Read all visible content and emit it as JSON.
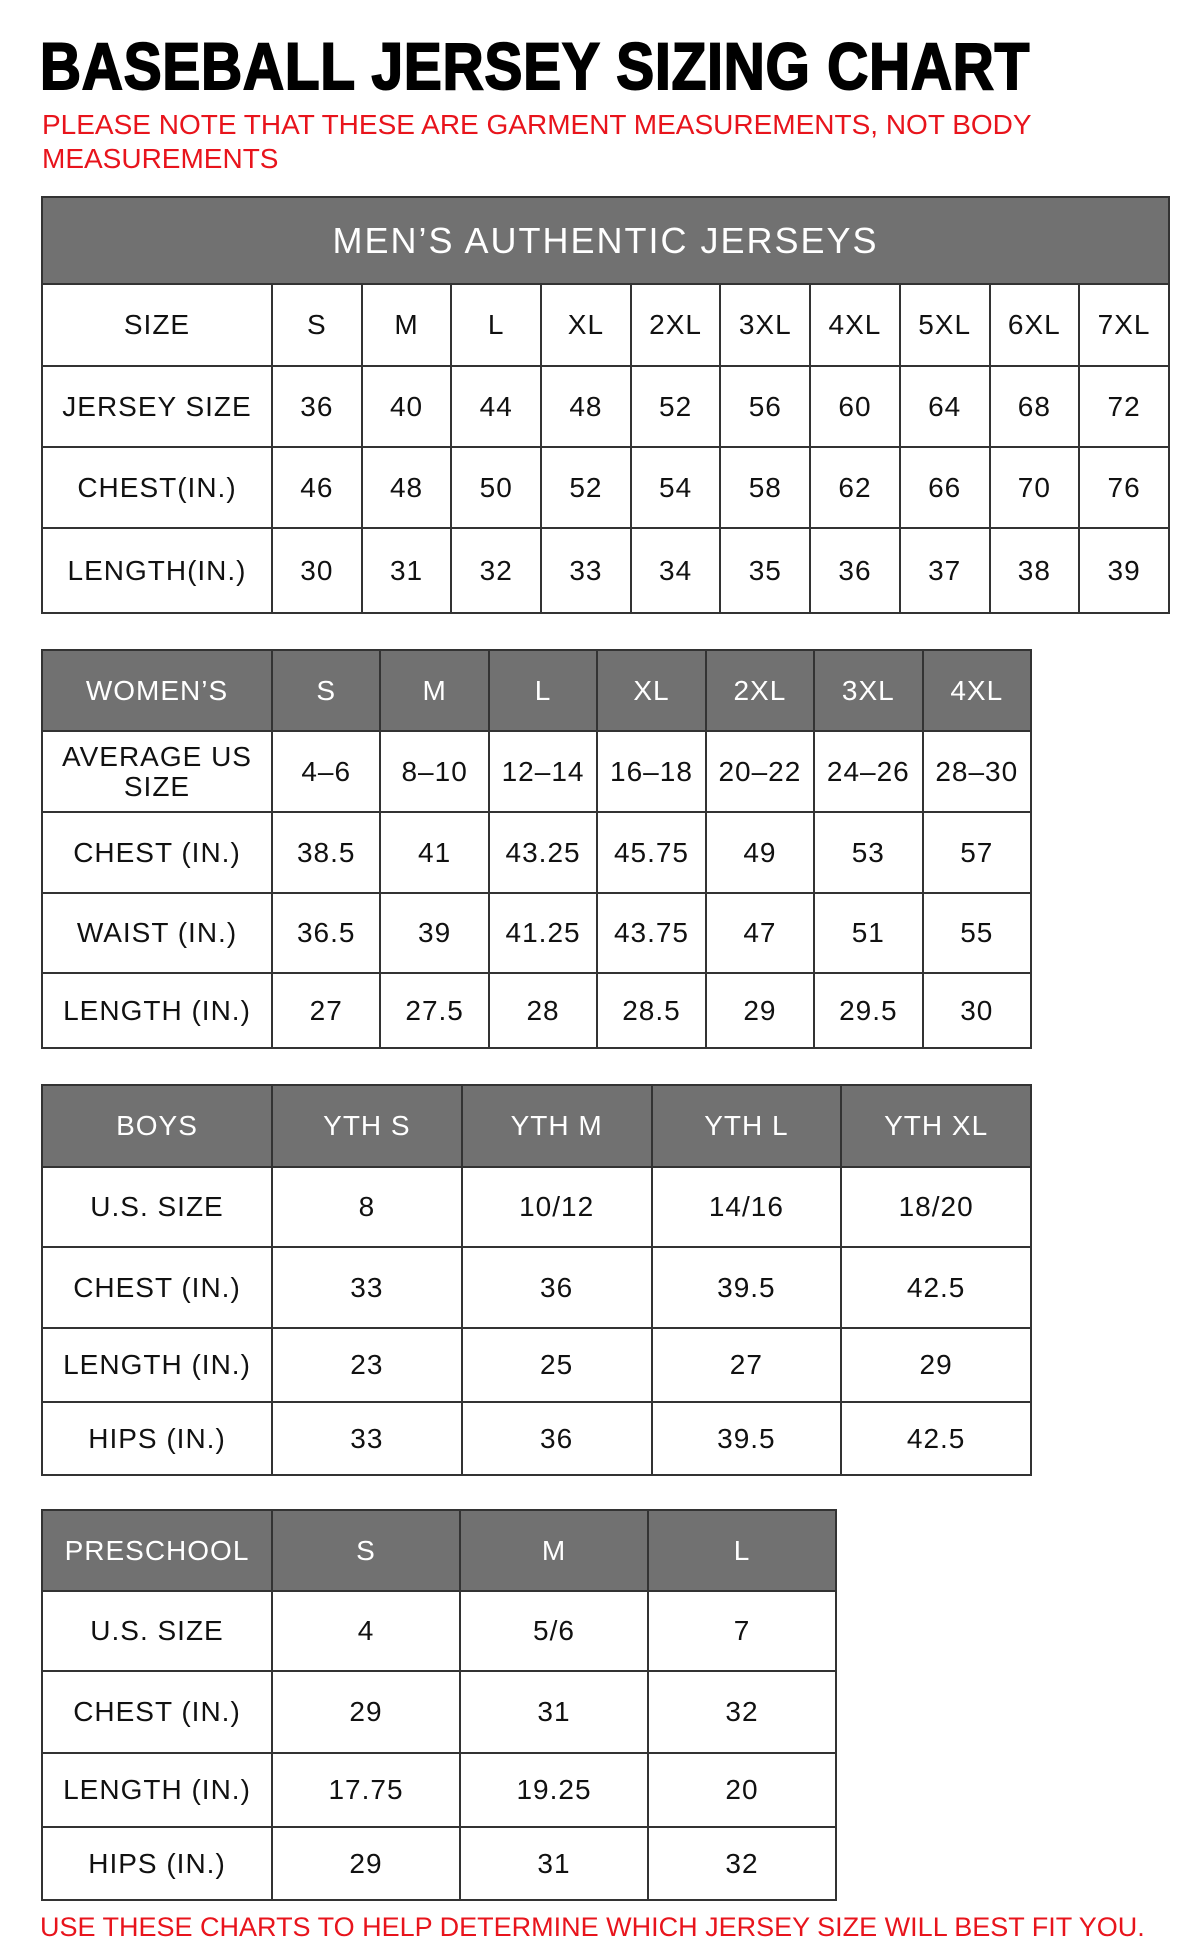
{
  "title": "BASEBALL JERSEY SIZING CHART",
  "note": "PLEASE NOTE THAT THESE ARE GARMENT MEASUREMENTS, NOT BODY MEASUREMENTS",
  "footer": "USE THESE CHARTS TO HELP DETERMINE WHICH JERSEY SIZE WILL BEST FIT YOU.",
  "colors": {
    "header_gray": "#717171",
    "note_red": "#e8141c"
  },
  "mens": {
    "title": "MEN’S AUTHENTIC JERSEYS",
    "rows": [
      [
        "SIZE",
        "S",
        "M",
        "L",
        "XL",
        "2XL",
        "3XL",
        "4XL",
        "5XL",
        "6XL",
        "7XL"
      ],
      [
        "JERSEY SIZE",
        "36",
        "40",
        "44",
        "48",
        "52",
        "56",
        "60",
        "64",
        "68",
        "72"
      ],
      [
        "CHEST(IN.)",
        "46",
        "48",
        "50",
        "52",
        "54",
        "58",
        "62",
        "66",
        "70",
        "76"
      ],
      [
        "LENGTH(IN.)",
        "30",
        "31",
        "32",
        "33",
        "34",
        "35",
        "36",
        "37",
        "38",
        "39"
      ]
    ]
  },
  "womens": {
    "header": [
      "WOMEN’S",
      "S",
      "M",
      "L",
      "XL",
      "2XL",
      "3XL",
      "4XL"
    ],
    "rows": [
      [
        "AVERAGE US SIZE",
        "4–6",
        "8–10",
        "12–14",
        "16–18",
        "20–22",
        "24–26",
        "28–30"
      ],
      [
        "CHEST (IN.)",
        "38.5",
        "41",
        "43.25",
        "45.75",
        "49",
        "53",
        "57"
      ],
      [
        "WAIST (IN.)",
        "36.5",
        "39",
        "41.25",
        "43.75",
        "47",
        "51",
        "55"
      ],
      [
        "LENGTH (IN.)",
        "27",
        "27.5",
        "28",
        "28.5",
        "29",
        "29.5",
        "30"
      ]
    ]
  },
  "boys": {
    "header": [
      "BOYS",
      "YTH S",
      "YTH M",
      "YTH L",
      "YTH XL"
    ],
    "rows": [
      [
        "U.S. SIZE",
        "8",
        "10/12",
        "14/16",
        "18/20"
      ],
      [
        "CHEST (IN.)",
        "33",
        "36",
        "39.5",
        "42.5"
      ],
      [
        "LENGTH (IN.)",
        "23",
        "25",
        "27",
        "29"
      ],
      [
        "HIPS (IN.)",
        "33",
        "36",
        "39.5",
        "42.5"
      ]
    ]
  },
  "preschool": {
    "header": [
      "PRESCHOOL",
      "S",
      "M",
      "L"
    ],
    "rows": [
      [
        "U.S. SIZE",
        "4",
        "5/6",
        "7"
      ],
      [
        "CHEST (IN.)",
        "29",
        "31",
        "32"
      ],
      [
        "LENGTH (IN.)",
        "17.75",
        "19.25",
        "20"
      ],
      [
        "HIPS (IN.)",
        "29",
        "31",
        "32"
      ]
    ]
  }
}
